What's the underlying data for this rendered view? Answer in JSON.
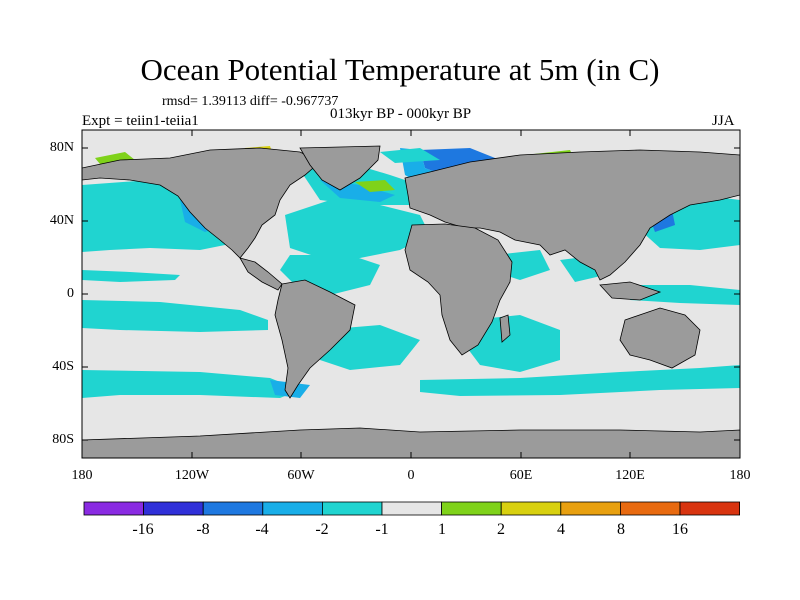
{
  "header": {
    "title": "Ocean Potential Temperature at 5m (in C)",
    "stats": "rmsd= 1.39113 diff= -0.967737",
    "expt": "Expt = teiin1-teiia1",
    "subtitle": "013kyr BP - 000kyr BP",
    "season": "JJA"
  },
  "axes": {
    "lat_ticks": [
      "80N",
      "40N",
      "0",
      "40S",
      "80S"
    ],
    "lon_ticks": [
      "180",
      "120W",
      "60W",
      "0",
      "60E",
      "120E",
      "180"
    ],
    "lat_range": [
      -90,
      90
    ],
    "lon_range": [
      -180,
      180
    ]
  },
  "colorbar": {
    "colors": [
      "#8a2be2",
      "#3030d8",
      "#1e78e0",
      "#19aee8",
      "#20d4d0",
      "#e6e6e6",
      "#7fd21a",
      "#d8d010",
      "#e8a010",
      "#e86a10",
      "#d83410"
    ],
    "labels": [
      "-16",
      "-8",
      "-4",
      "-2",
      "-1",
      "1",
      "2",
      "4",
      "8",
      "16"
    ]
  },
  "colors": {
    "land": "#9b9b9b",
    "ocean_neutral": "#e6e6e6"
  }
}
